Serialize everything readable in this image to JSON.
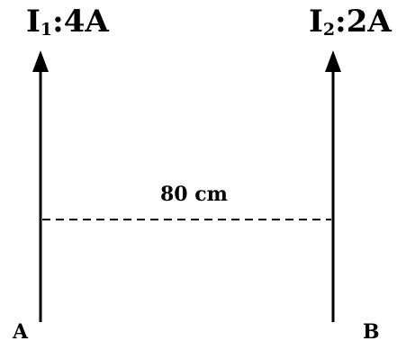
{
  "currents": [
    {
      "symbol": "I",
      "subscript": "1",
      "value": ":4A"
    },
    {
      "symbol": "I",
      "subscript": "2",
      "value": ":2A"
    }
  ],
  "points": {
    "a": "A",
    "b": "B"
  },
  "distance_label": "80 cm"
}
